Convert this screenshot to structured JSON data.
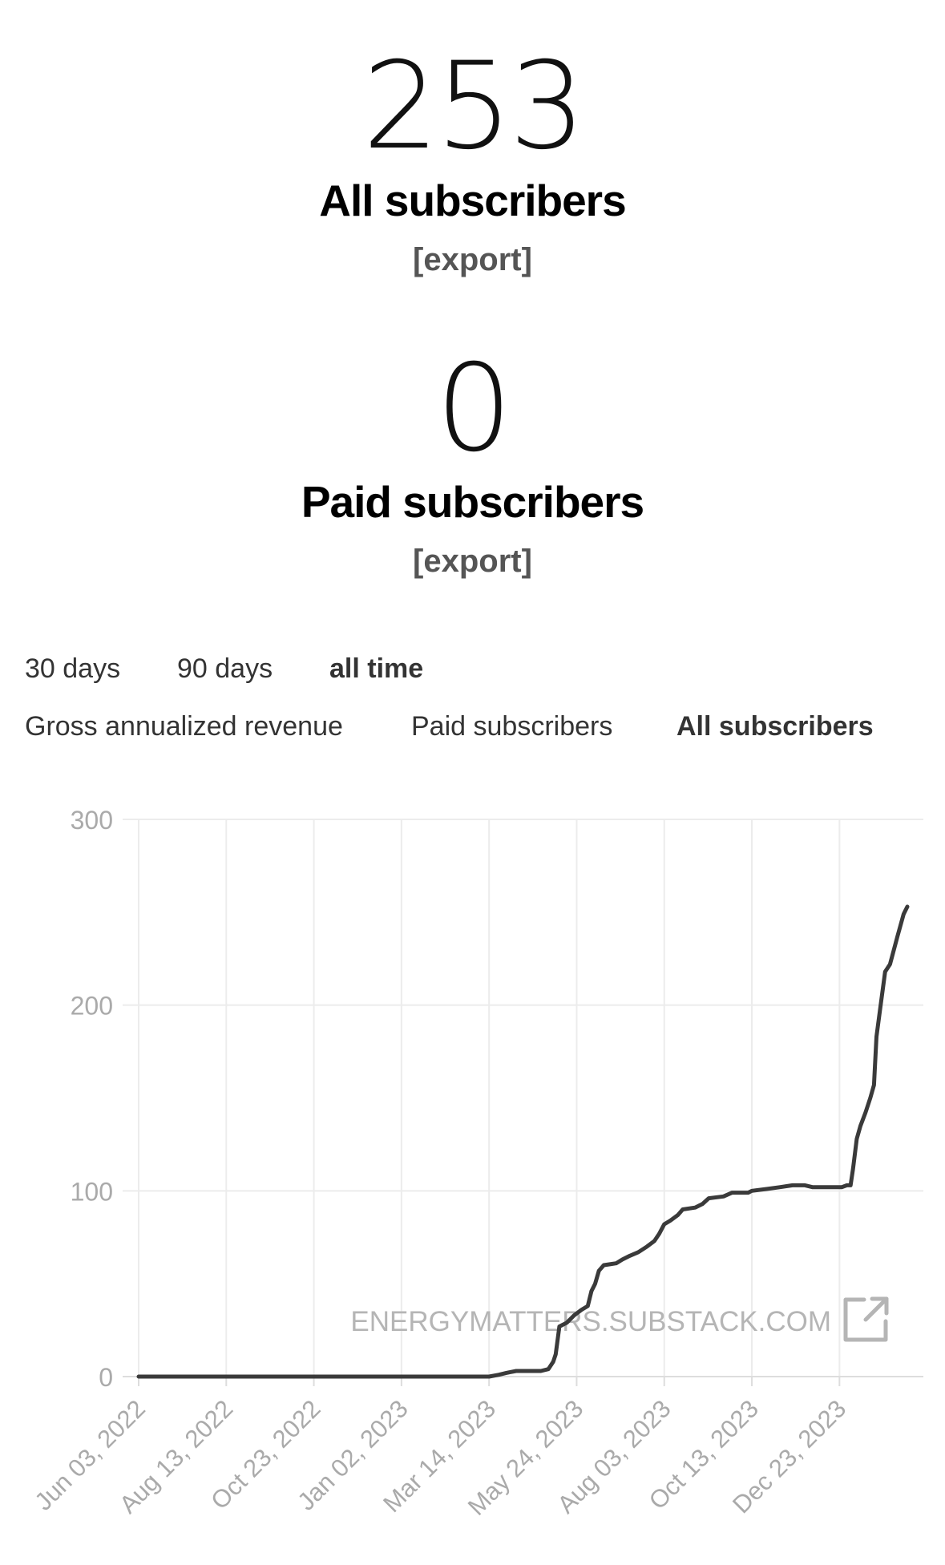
{
  "stats": {
    "all": {
      "value": "253",
      "label": "All subscribers",
      "export_label": "[export]"
    },
    "paid": {
      "value": "0",
      "label": "Paid subscribers",
      "export_label": "[export]"
    }
  },
  "range_tabs": [
    {
      "label": "30 days",
      "active": false
    },
    {
      "label": "90 days",
      "active": false
    },
    {
      "label": "all time",
      "active": true
    }
  ],
  "metric_tabs": [
    {
      "label": "Gross annualized revenue",
      "active": false
    },
    {
      "label": "Paid subscribers",
      "active": false
    },
    {
      "label": "All subscribers",
      "active": true
    }
  ],
  "chart_data": {
    "type": "line",
    "watermark": "ENERGYMATTERS.SUBSTACK.COM",
    "watermark_icon": "external-link-icon",
    "line_color": "#3a3a3a",
    "grid": true,
    "ylim": [
      0,
      300
    ],
    "y_ticks": [
      "0",
      "100",
      "200",
      "300"
    ],
    "x_ticks": [
      "Jun 03, 2022",
      "Aug 13, 2022",
      "Oct 23, 2022",
      "Jan 02, 2023",
      "Mar 14, 2023",
      "May 24, 2023",
      "Aug 03, 2023",
      "Oct 13, 2023",
      "Dec 23, 2023"
    ],
    "xlim": [
      "2022-06-03",
      "2024-02-29"
    ],
    "series": [
      {
        "points": [
          [
            "2022-06-03",
            0
          ],
          [
            "2023-03-14",
            0
          ],
          [
            "2023-03-22",
            1
          ],
          [
            "2023-03-28",
            2
          ],
          [
            "2023-04-05",
            3
          ],
          [
            "2023-04-25",
            3
          ],
          [
            "2023-05-01",
            4
          ],
          [
            "2023-05-05",
            8
          ],
          [
            "2023-05-07",
            12
          ],
          [
            "2023-05-10",
            27
          ],
          [
            "2023-05-16",
            29
          ],
          [
            "2023-05-22",
            33
          ],
          [
            "2023-05-28",
            36
          ],
          [
            "2023-06-02",
            38
          ],
          [
            "2023-06-05",
            46
          ],
          [
            "2023-06-08",
            50
          ],
          [
            "2023-06-11",
            57
          ],
          [
            "2023-06-15",
            60
          ],
          [
            "2023-06-25",
            61
          ],
          [
            "2023-06-30",
            63
          ],
          [
            "2023-07-06",
            65
          ],
          [
            "2023-07-13",
            67
          ],
          [
            "2023-07-20",
            70
          ],
          [
            "2023-07-26",
            73
          ],
          [
            "2023-07-30",
            77
          ],
          [
            "2023-08-03",
            82
          ],
          [
            "2023-08-08",
            84
          ],
          [
            "2023-08-14",
            87
          ],
          [
            "2023-08-18",
            90
          ],
          [
            "2023-08-28",
            91
          ],
          [
            "2023-09-03",
            93
          ],
          [
            "2023-09-08",
            96
          ],
          [
            "2023-09-20",
            97
          ],
          [
            "2023-09-27",
            99
          ],
          [
            "2023-10-10",
            99
          ],
          [
            "2023-10-13",
            100
          ],
          [
            "2023-10-25",
            101
          ],
          [
            "2023-11-05",
            102
          ],
          [
            "2023-11-15",
            103
          ],
          [
            "2023-11-25",
            103
          ],
          [
            "2023-12-01",
            102
          ],
          [
            "2023-12-25",
            102
          ],
          [
            "2023-12-29",
            103
          ],
          [
            "2024-01-01",
            103
          ],
          [
            "2024-01-03",
            112
          ],
          [
            "2024-01-06",
            128
          ],
          [
            "2024-01-09",
            135
          ],
          [
            "2024-01-13",
            142
          ],
          [
            "2024-01-17",
            150
          ],
          [
            "2024-01-20",
            157
          ],
          [
            "2024-01-22",
            183
          ],
          [
            "2024-01-25",
            198
          ],
          [
            "2024-01-29",
            218
          ],
          [
            "2024-02-02",
            222
          ],
          [
            "2024-02-08",
            237
          ],
          [
            "2024-02-13",
            249
          ],
          [
            "2024-02-16",
            253
          ]
        ]
      }
    ]
  }
}
